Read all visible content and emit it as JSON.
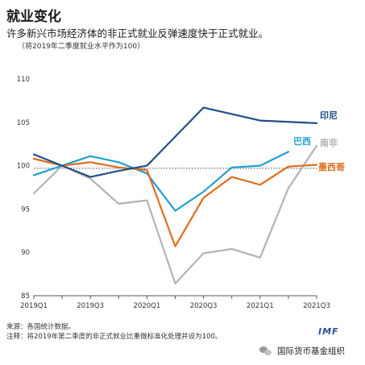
{
  "header": {
    "title": "就业变化",
    "subtitle": "许多新兴市场经济体的非正式就业反弹速度快于正式就业。",
    "note": "（将2019年二季度就业水平作为100）"
  },
  "footer": {
    "source": "来源：各国统计数据。",
    "note": "注释：将2019年第二季度的非正式就业比重做标准化处理并设为100。",
    "logo": "IMF",
    "wechat_label": "国际货币基金组织"
  },
  "chart_data": {
    "type": "line",
    "x": [
      "2019Q1",
      "2019Q2",
      "2019Q3",
      "2019Q4",
      "2020Q1",
      "2020Q2",
      "2020Q3",
      "2020Q4",
      "2021Q1",
      "2021Q2",
      "2021Q3"
    ],
    "x_tick_labels": [
      "2019Q1",
      "2019Q3",
      "2020Q1",
      "2020Q3",
      "2021Q1",
      "2021Q3"
    ],
    "ylim": [
      85,
      110
    ],
    "y_ticks": [
      85,
      90,
      95,
      100,
      105,
      110
    ],
    "reference_line": 99.7,
    "series": [
      {
        "name": "印尼",
        "color": "#1f4e8c",
        "values": [
          101.3,
          100.0,
          98.7,
          99.4,
          100.0,
          null,
          106.7,
          null,
          105.2,
          null,
          104.9
        ]
      },
      {
        "name": "巴西",
        "color": "#21a0d2",
        "values": [
          98.9,
          100.0,
          101.1,
          100.4,
          99.1,
          94.8,
          97.0,
          99.8,
          100.0,
          101.6,
          null
        ]
      },
      {
        "name": "南非",
        "color": "#b3b3b3",
        "values": [
          96.8,
          100.0,
          98.5,
          95.6,
          96.0,
          86.4,
          89.9,
          90.4,
          89.4,
          97.4,
          102.3
        ]
      },
      {
        "name": "墨西哥",
        "color": "#e06c1f",
        "values": [
          100.8,
          100.0,
          100.4,
          99.8,
          99.5,
          90.7,
          96.3,
          98.7,
          97.8,
          99.9,
          100.1
        ]
      }
    ]
  }
}
